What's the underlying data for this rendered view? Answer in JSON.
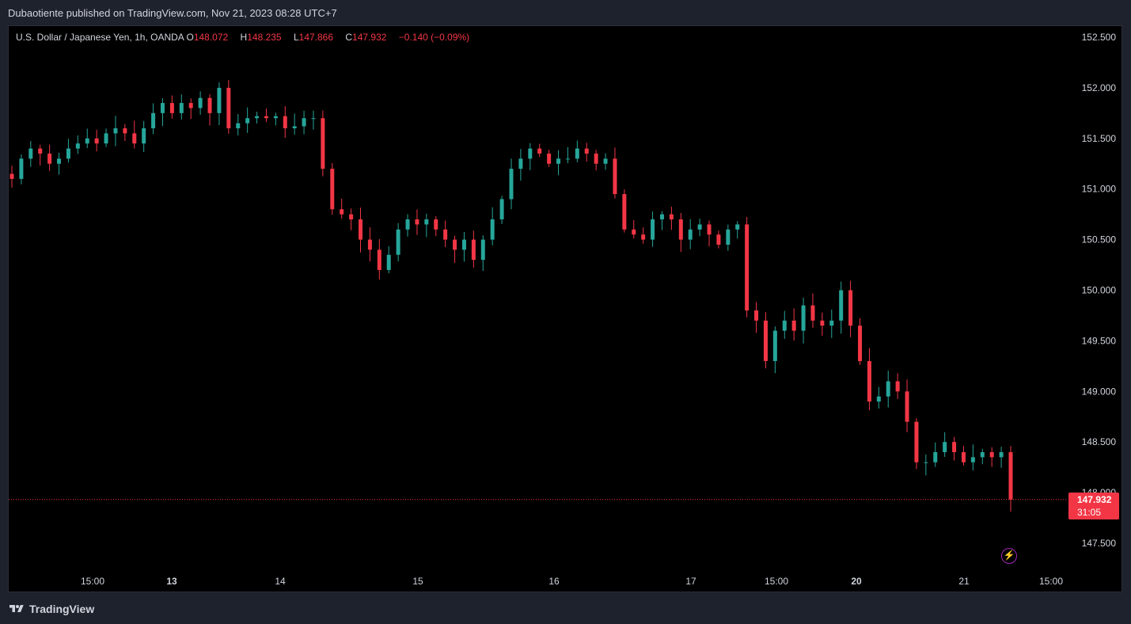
{
  "header": {
    "published": "Dubaotiente published on TradingView.com, Nov 21, 2023 08:28 UTC+7"
  },
  "legend": {
    "symbol": "U.S. Dollar / Japanese Yen, 1h, OANDA",
    "open_label": "O",
    "open": "148.072",
    "high_label": "H",
    "high": "148.235",
    "low_label": "L",
    "low": "147.866",
    "close_label": "C",
    "close": "147.932",
    "change": "−0.140 (−0.09%)"
  },
  "price_tag": {
    "value": "147.932",
    "countdown": "31:05"
  },
  "footer": {
    "brand": "TradingView",
    "logo_icon": "tradingview-logo-icon"
  },
  "alert_icon": "lightning-icon",
  "colors": {
    "up": "#26a69a",
    "down": "#f23645",
    "background": "#000000",
    "last_price": "#f23645"
  },
  "chart_data": {
    "type": "candlestick",
    "interval": "1h",
    "ylim": [
      147.2,
      152.65
    ],
    "price_ticks": [
      "147.500",
      "148.000",
      "148.500",
      "149.000",
      "149.500",
      "150.000",
      "150.500",
      "151.000",
      "151.500",
      "152.000",
      "152.500"
    ],
    "time_labels": [
      "15:00",
      "13",
      "14",
      "15",
      "16",
      "17",
      "15:00",
      "20",
      "21",
      "15:00"
    ],
    "bold_time_labels": [
      "13",
      "20"
    ],
    "last_price": 147.932,
    "close_path": [
      151.1,
      151.3,
      151.4,
      151.35,
      151.25,
      151.3,
      151.4,
      151.45,
      151.5,
      151.45,
      151.55,
      151.6,
      151.55,
      151.45,
      151.6,
      151.75,
      151.85,
      151.75,
      151.85,
      151.8,
      151.9,
      151.75,
      152.0,
      151.6,
      151.65,
      151.7,
      151.72,
      151.7,
      151.72,
      151.6,
      151.62,
      151.7,
      151.7,
      151.2,
      150.8,
      150.75,
      150.7,
      150.5,
      150.4,
      150.2,
      150.35,
      150.6,
      150.7,
      150.65,
      150.7,
      150.6,
      150.5,
      150.4,
      150.5,
      150.3,
      150.5,
      150.7,
      150.9,
      151.2,
      151.3,
      151.4,
      151.35,
      151.25,
      151.3,
      151.3,
      151.4,
      151.35,
      151.25,
      151.3,
      150.95,
      150.6,
      150.55,
      150.5,
      150.7,
      150.75,
      150.7,
      150.5,
      150.6,
      150.65,
      150.55,
      150.45,
      150.6,
      150.65,
      149.8,
      149.7,
      149.3,
      149.6,
      149.7,
      149.6,
      149.85,
      149.7,
      149.65,
      149.7,
      150.0,
      149.65,
      149.3,
      148.9,
      148.95,
      149.1,
      149.0,
      148.7,
      148.3,
      148.3,
      148.4,
      148.5,
      148.4,
      148.3,
      148.35,
      148.4,
      148.35,
      148.4,
      147.932
    ]
  }
}
